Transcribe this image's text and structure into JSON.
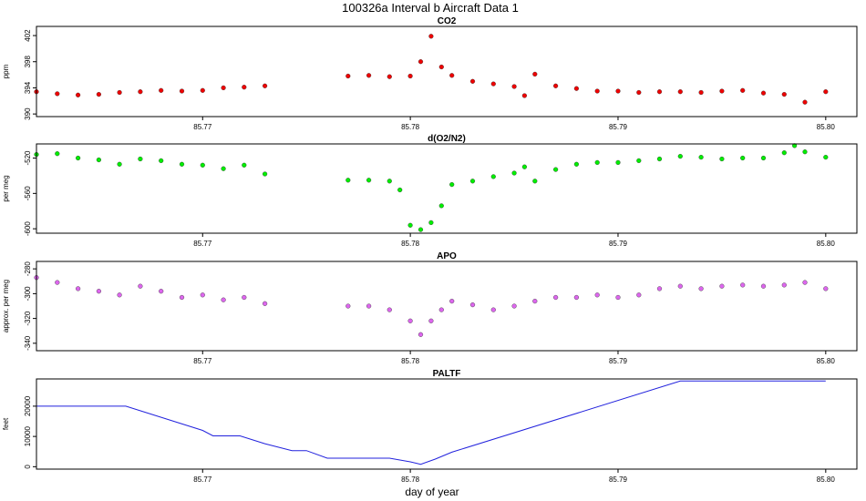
{
  "chart_data": {
    "type": "scatter",
    "title": "100326a   Interval b Aircraft Data 1",
    "xlabel": "day of year",
    "xlim": [
      85.762,
      85.8015
    ],
    "x_ticks": [
      85.77,
      85.78,
      85.79,
      85.8
    ],
    "x_tick_labels": [
      "85.77",
      "85.78",
      "85.79",
      "85.80"
    ],
    "panels": [
      {
        "id": "co2",
        "title": "CO2",
        "ylabel": "ppm",
        "ylim": [
          389.6,
          403.4
        ],
        "y_ticks": [
          390,
          394,
          398,
          402
        ],
        "y_tick_labels": [
          "390",
          "394",
          "398",
          "402"
        ],
        "color": "#ee0000",
        "points": [
          [
            85.762,
            393.4
          ],
          [
            85.763,
            393.1
          ],
          [
            85.764,
            392.9
          ],
          [
            85.765,
            393.0
          ],
          [
            85.766,
            393.3
          ],
          [
            85.767,
            393.4
          ],
          [
            85.768,
            393.6
          ],
          [
            85.769,
            393.5
          ],
          [
            85.77,
            393.6
          ],
          [
            85.771,
            394.0
          ],
          [
            85.772,
            394.1
          ],
          [
            85.773,
            394.3
          ],
          [
            85.777,
            395.8
          ],
          [
            85.778,
            395.9
          ],
          [
            85.779,
            395.7
          ],
          [
            85.78,
            395.8
          ],
          [
            85.7805,
            398.0
          ],
          [
            85.781,
            401.9
          ],
          [
            85.7815,
            397.2
          ],
          [
            85.782,
            395.9
          ],
          [
            85.783,
            395.0
          ],
          [
            85.784,
            394.6
          ],
          [
            85.785,
            394.2
          ],
          [
            85.7855,
            392.8
          ],
          [
            85.786,
            396.1
          ],
          [
            85.787,
            394.3
          ],
          [
            85.788,
            393.9
          ],
          [
            85.789,
            393.5
          ],
          [
            85.79,
            393.5
          ],
          [
            85.791,
            393.3
          ],
          [
            85.792,
            393.4
          ],
          [
            85.793,
            393.4
          ],
          [
            85.794,
            393.3
          ],
          [
            85.795,
            393.5
          ],
          [
            85.796,
            393.6
          ],
          [
            85.797,
            393.2
          ],
          [
            85.798,
            393.0
          ],
          [
            85.799,
            391.8
          ],
          [
            85.8,
            393.4
          ]
        ]
      },
      {
        "id": "o2n2",
        "title": "d(O2/N2)",
        "ylabel": "per meg",
        "ylim": [
          -605,
          -504
        ],
        "y_ticks": [
          -600,
          -560,
          -520
        ],
        "y_tick_labels": [
          "-600",
          "-560",
          "-520"
        ],
        "color": "#00ee00",
        "points": [
          [
            85.762,
            -516
          ],
          [
            85.763,
            -515
          ],
          [
            85.764,
            -520
          ],
          [
            85.765,
            -522
          ],
          [
            85.766,
            -527
          ],
          [
            85.767,
            -521
          ],
          [
            85.768,
            -523
          ],
          [
            85.769,
            -527
          ],
          [
            85.77,
            -528
          ],
          [
            85.771,
            -532
          ],
          [
            85.772,
            -528
          ],
          [
            85.773,
            -538
          ],
          [
            85.777,
            -545
          ],
          [
            85.778,
            -545
          ],
          [
            85.779,
            -546
          ],
          [
            85.7795,
            -556
          ],
          [
            85.78,
            -596
          ],
          [
            85.7805,
            -601
          ],
          [
            85.781,
            -593
          ],
          [
            85.7815,
            -574
          ],
          [
            85.782,
            -550
          ],
          [
            85.783,
            -546
          ],
          [
            85.784,
            -541
          ],
          [
            85.785,
            -537
          ],
          [
            85.7855,
            -530
          ],
          [
            85.786,
            -546
          ],
          [
            85.787,
            -533
          ],
          [
            85.788,
            -527
          ],
          [
            85.789,
            -525
          ],
          [
            85.79,
            -525
          ],
          [
            85.791,
            -523
          ],
          [
            85.792,
            -521
          ],
          [
            85.793,
            -518
          ],
          [
            85.794,
            -519
          ],
          [
            85.795,
            -521
          ],
          [
            85.796,
            -520
          ],
          [
            85.797,
            -520
          ],
          [
            85.798,
            -514
          ],
          [
            85.7985,
            -506
          ],
          [
            85.799,
            -513
          ],
          [
            85.8,
            -519
          ]
        ]
      },
      {
        "id": "apo",
        "title": "APO",
        "ylabel": "approx. per meg",
        "ylim": [
          -346,
          -274
        ],
        "y_ticks": [
          -340,
          -320,
          -300,
          -280
        ],
        "y_tick_labels": [
          "-340",
          "-320",
          "-300",
          "-280"
        ],
        "color": "#dd66ee",
        "points": [
          [
            85.762,
            -287
          ],
          [
            85.763,
            -291
          ],
          [
            85.764,
            -296
          ],
          [
            85.765,
            -298
          ],
          [
            85.766,
            -301
          ],
          [
            85.767,
            -294
          ],
          [
            85.768,
            -298
          ],
          [
            85.769,
            -303
          ],
          [
            85.77,
            -301
          ],
          [
            85.771,
            -305
          ],
          [
            85.772,
            -303
          ],
          [
            85.773,
            -308
          ],
          [
            85.777,
            -310
          ],
          [
            85.778,
            -310
          ],
          [
            85.779,
            -313
          ],
          [
            85.78,
            -322
          ],
          [
            85.7805,
            -333
          ],
          [
            85.781,
            -322
          ],
          [
            85.7815,
            -313
          ],
          [
            85.782,
            -306
          ],
          [
            85.783,
            -309
          ],
          [
            85.784,
            -313
          ],
          [
            85.785,
            -310
          ],
          [
            85.786,
            -306
          ],
          [
            85.787,
            -303
          ],
          [
            85.788,
            -303
          ],
          [
            85.789,
            -301
          ],
          [
            85.79,
            -303
          ],
          [
            85.791,
            -301
          ],
          [
            85.792,
            -296
          ],
          [
            85.793,
            -294
          ],
          [
            85.794,
            -296
          ],
          [
            85.795,
            -294
          ],
          [
            85.796,
            -293
          ],
          [
            85.797,
            -294
          ],
          [
            85.798,
            -293
          ],
          [
            85.799,
            -291
          ],
          [
            85.8,
            -296
          ]
        ]
      },
      {
        "id": "paltf",
        "title": "PALTF",
        "ylabel": "feet",
        "ylim": [
          -800,
          29000
        ],
        "y_ticks": [
          0,
          10000,
          20000
        ],
        "y_tick_labels": [
          "0",
          "10000",
          "20000"
        ],
        "color": "#2222dd",
        "points": [
          [
            85.762,
            20000
          ],
          [
            85.7663,
            20000
          ],
          [
            85.77,
            12000
          ],
          [
            85.7705,
            10200
          ],
          [
            85.7718,
            10200
          ],
          [
            85.773,
            7600
          ],
          [
            85.7743,
            5300
          ],
          [
            85.775,
            5300
          ],
          [
            85.776,
            2800
          ],
          [
            85.779,
            2800
          ],
          [
            85.78,
            1600
          ],
          [
            85.7805,
            800
          ],
          [
            85.7812,
            2500
          ],
          [
            85.782,
            4800
          ],
          [
            85.793,
            28300
          ],
          [
            85.8,
            28300
          ]
        ]
      }
    ]
  }
}
